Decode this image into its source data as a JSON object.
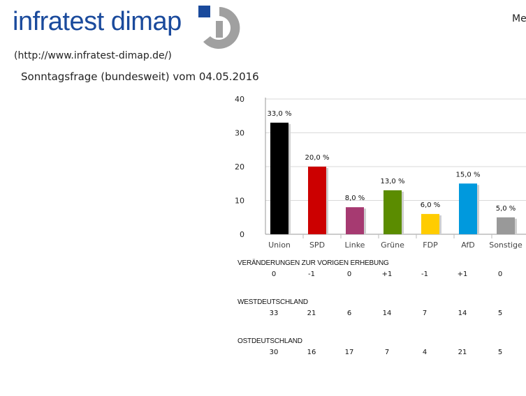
{
  "brand": {
    "name": "infratest dimap",
    "url": "(http://www.infratest-dimap.de/)",
    "menu": "Me"
  },
  "headline": "Sonntagsfrage (bundesweit) vom 04.05.2016",
  "colors": {
    "brand": "#1a4a9c",
    "logo_grey": "#a0a0a0",
    "Union": "#000000",
    "SPD": "#cc0000",
    "Linke": "#a63a71",
    "Grüne": "#5b8c00",
    "FDP": "#ffcc00",
    "AfD": "#0099dd",
    "Sonstige": "#999999"
  },
  "chart_data": {
    "type": "bar",
    "title": "Sonntagsfrage (bundesweit) vom 04.05.2016",
    "categories": [
      "Union",
      "SPD",
      "Linke",
      "Grüne",
      "FDP",
      "AfD",
      "Sonstige"
    ],
    "values": [
      33.0,
      20.0,
      8.0,
      13.0,
      6.0,
      15.0,
      5.0
    ],
    "value_labels": [
      "33,0 %",
      "20,0 %",
      "8,0 %",
      "13,0 %",
      "6,0 %",
      "15,0 %",
      "5,0 %"
    ],
    "ylim": [
      0,
      40
    ],
    "yticks": [
      0,
      10,
      20,
      30,
      40
    ],
    "xlabel": "",
    "ylabel": "",
    "grid": true
  },
  "tables": [
    {
      "title": "VERÄNDERUNGEN ZUR VORIGEN ERHEBUNG",
      "values": [
        "0",
        "-1",
        "0",
        "+1",
        "-1",
        "+1",
        "0"
      ]
    },
    {
      "title": "WESTDEUTSCHLAND",
      "values": [
        "33",
        "21",
        "6",
        "14",
        "7",
        "14",
        "5"
      ]
    },
    {
      "title": "OSTDEUTSCHLAND",
      "values": [
        "30",
        "16",
        "17",
        "7",
        "4",
        "21",
        "5"
      ]
    }
  ]
}
